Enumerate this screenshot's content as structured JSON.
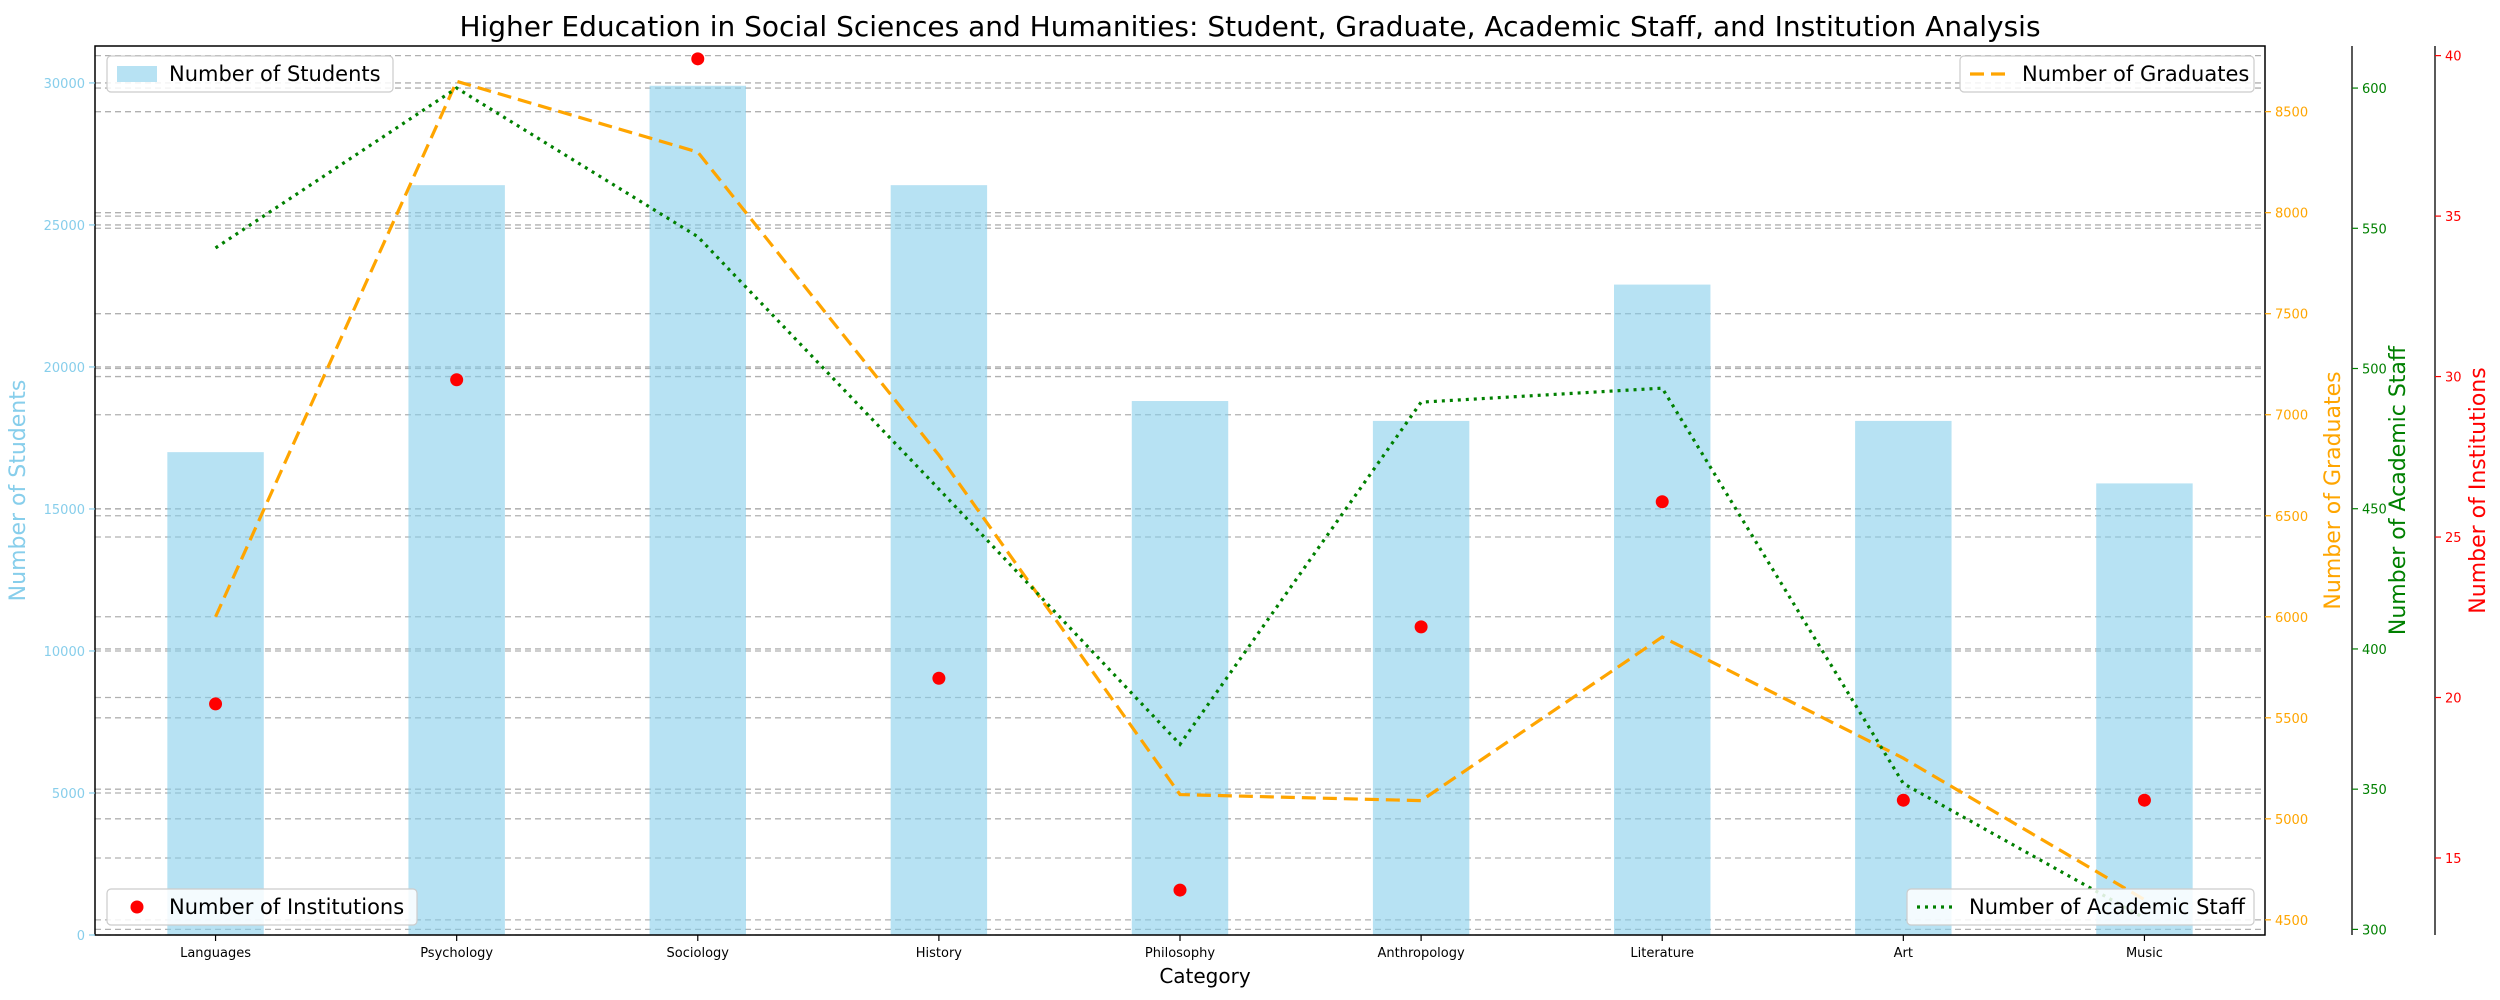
{
  "chart_data": {
    "type": "bar",
    "title": "Higher Education in Social Sciences and Humanities: Student, Graduate, Academic Staff, and Institution Analysis",
    "xlabel": "Category",
    "categories": [
      "Languages",
      "Psychology",
      "Sociology",
      "History",
      "Philosophy",
      "Anthropology",
      "Literature",
      "Art",
      "Music"
    ],
    "series": [
      {
        "name": "Number of Students",
        "kind": "bar",
        "axis": "students",
        "color": "#87ceeb",
        "values": [
          17000,
          26400,
          29900,
          26400,
          18800,
          18100,
          22900,
          18100,
          15900
        ]
      },
      {
        "name": "Number of Graduates",
        "kind": "line",
        "style": "dashed",
        "axis": "graduates",
        "color": "#ffa500",
        "values": [
          6000,
          8650,
          8300,
          6800,
          5120,
          5090,
          5900,
          5300,
          4600
        ]
      },
      {
        "name": "Number of Academic Staff",
        "kind": "line",
        "style": "dotted",
        "axis": "staff",
        "color": "#008000",
        "values": [
          543,
          600,
          547,
          457,
          366,
          488,
          493,
          352,
          304
        ]
      },
      {
        "name": "Number of Institutions",
        "kind": "scatter",
        "axis": "institutions",
        "color": "#ff0000",
        "values": [
          19.8,
          29.9,
          39.9,
          20.6,
          14.0,
          22.2,
          26.1,
          16.8,
          16.8
        ]
      }
    ],
    "axes": {
      "students": {
        "label": "Number of Students",
        "color": "#87ceeb",
        "ylim": [
          0,
          31300
        ],
        "ticks": [
          0,
          5000,
          10000,
          15000,
          20000,
          25000,
          30000
        ]
      },
      "graduates": {
        "label": "Number of Graduates",
        "color": "#ffa500",
        "ylim": [
          4425,
          8825
        ],
        "ticks": [
          4500,
          5000,
          5500,
          6000,
          6500,
          7000,
          7500,
          8000,
          8500
        ]
      },
      "staff": {
        "label": "Number of Academic Staff",
        "color": "#008000",
        "ylim": [
          298,
          615
        ],
        "ticks": [
          300,
          350,
          400,
          450,
          500,
          550,
          600
        ]
      },
      "institutions": {
        "label": "Number of Institutions",
        "color": "#ff0000",
        "ylim": [
          12.6,
          40.3
        ],
        "ticks": [
          15,
          20,
          25,
          30,
          35,
          40
        ]
      }
    },
    "grid": true,
    "legends": {
      "students": "top-left",
      "graduates": "top-right",
      "institutions": "bottom-left",
      "staff": "bottom-right"
    }
  }
}
